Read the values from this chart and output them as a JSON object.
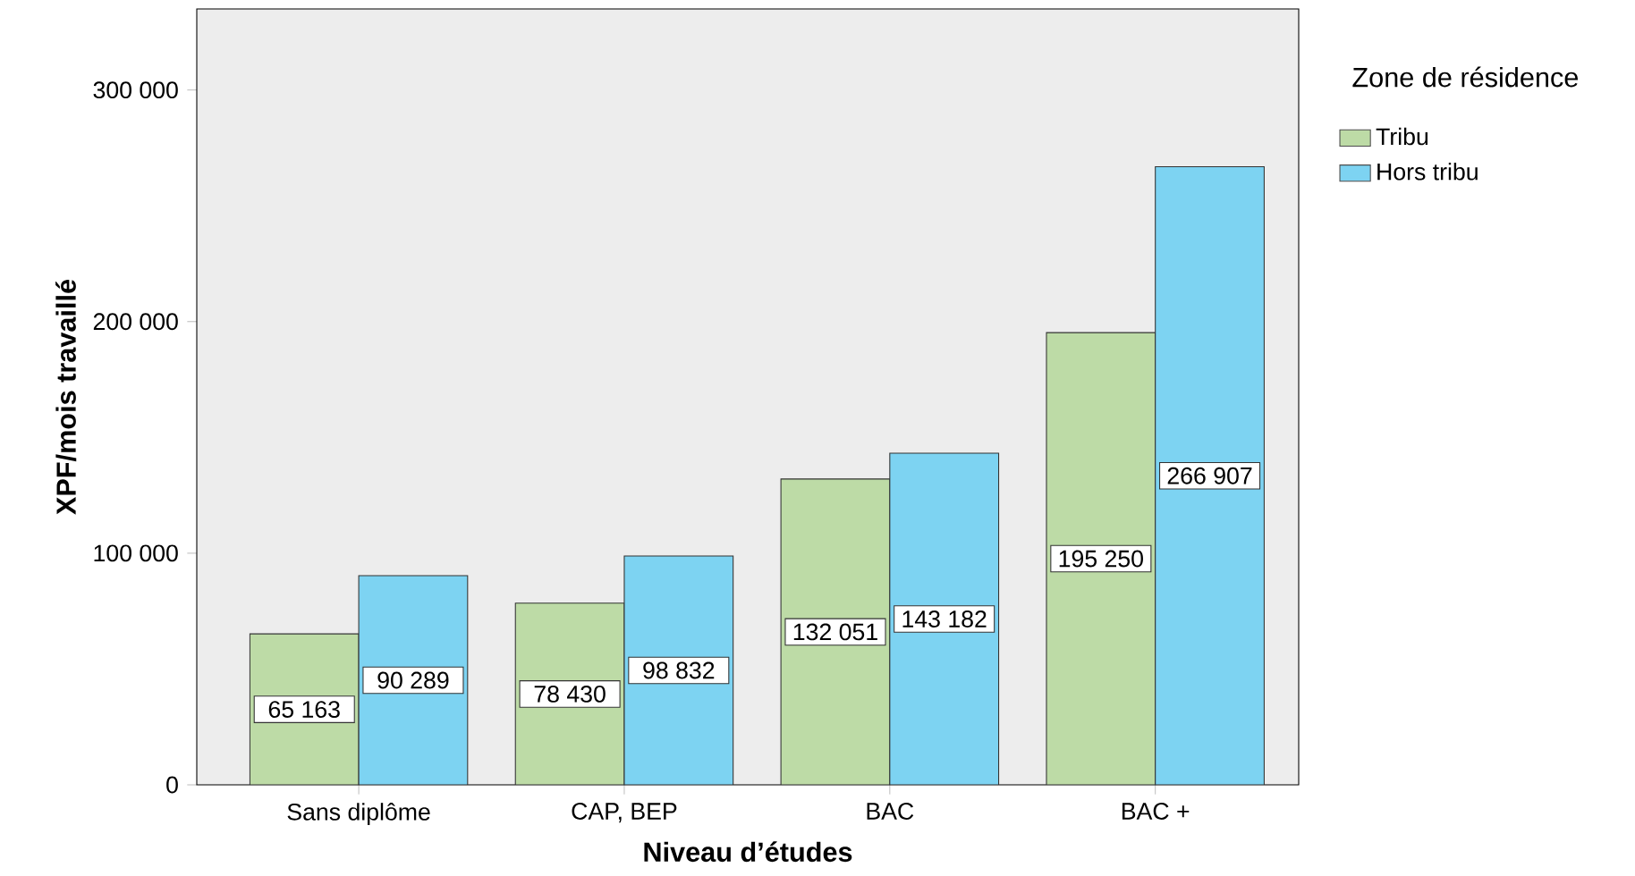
{
  "chart_data": {
    "type": "bar",
    "xlabel": "Niveau d’études",
    "ylabel": "XPF/mois travaillé",
    "legend_title": "Zone de résidence",
    "categories": [
      "Sans diplôme",
      "CAP, BEP",
      "BAC",
      "BAC +"
    ],
    "series": [
      {
        "name": "Tribu",
        "color": "#bddba6",
        "values": [
          65163,
          78430,
          132051,
          195250
        ],
        "value_labels": [
          "65 163",
          "78 430",
          "132 051",
          "195 250"
        ]
      },
      {
        "name": "Hors tribu",
        "color": "#7dd3f2",
        "values": [
          90289,
          98832,
          143182,
          266907
        ],
        "value_labels": [
          "90 289",
          "98 832",
          "143 182",
          "266 907"
        ]
      }
    ],
    "ylim": [
      0,
      335000
    ],
    "yticks": [
      0,
      {
        "value": 100000,
        "label": "100 000"
      },
      {
        "value": 200000,
        "label": "200 000"
      },
      {
        "value": 300000,
        "label": "300 000"
      }
    ],
    "grid": false,
    "legend": "right"
  }
}
